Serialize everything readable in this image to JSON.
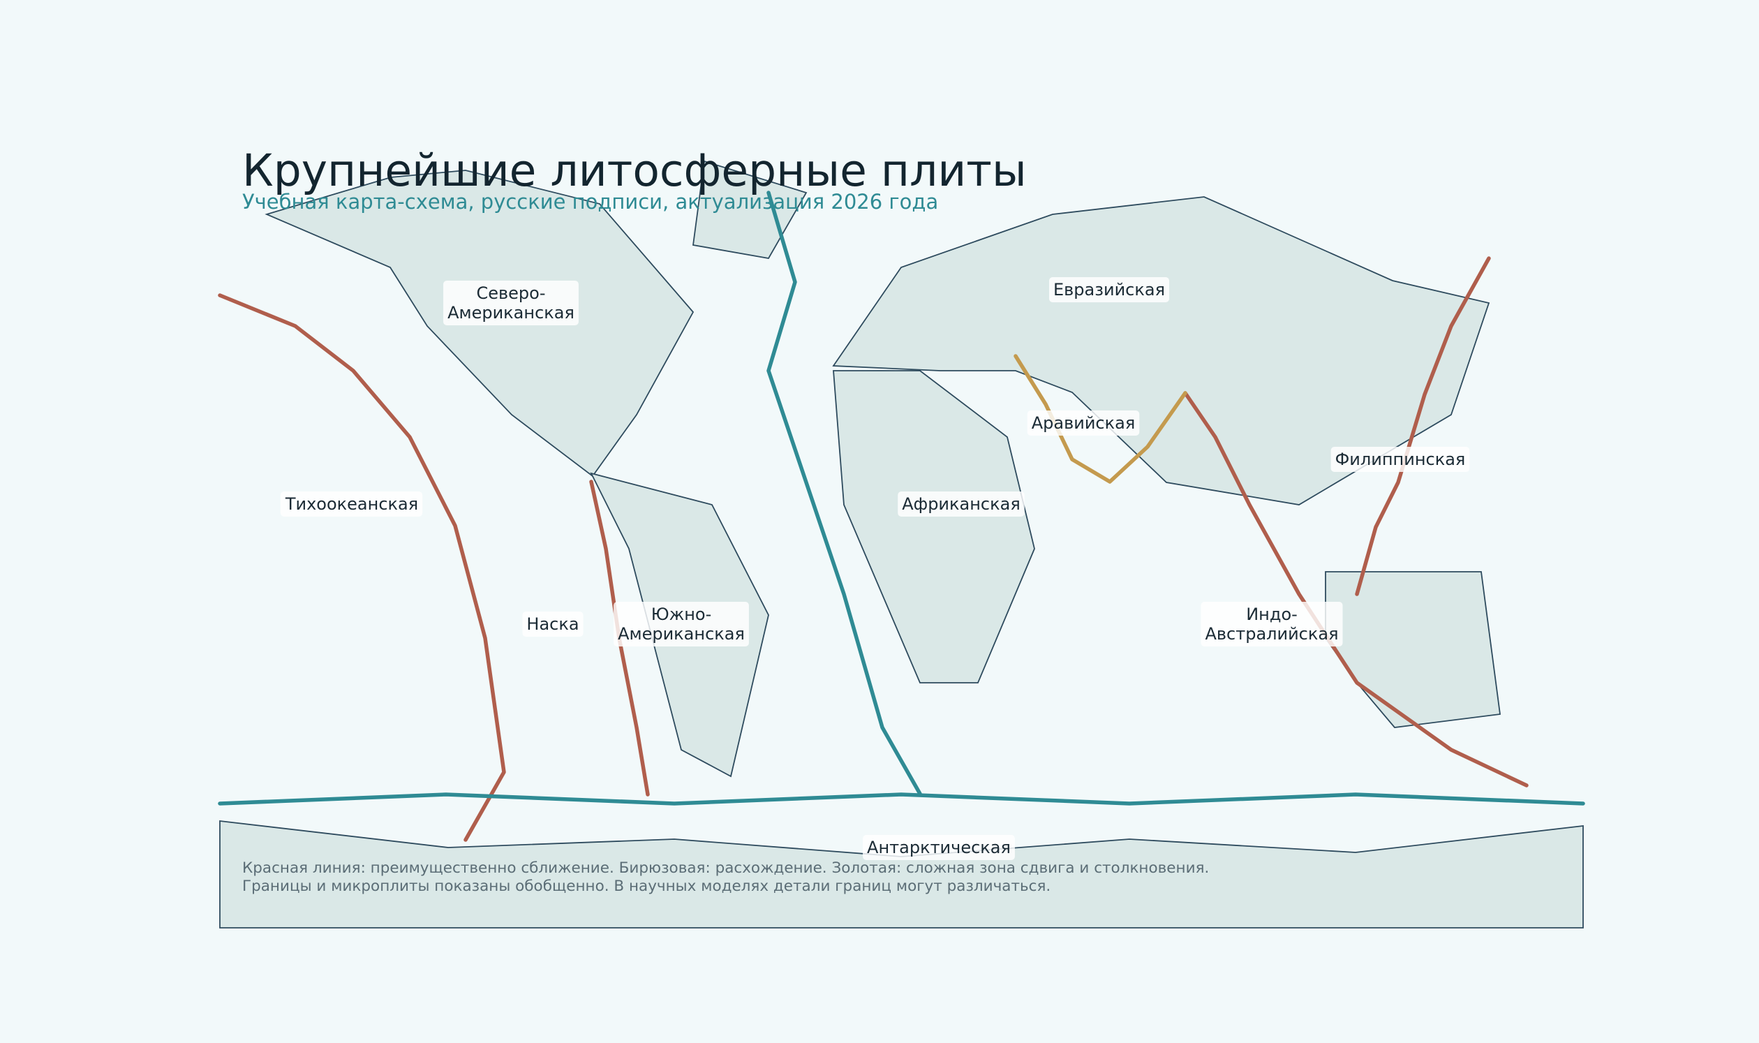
{
  "title": "Крупнейшие литосферные плиты",
  "subtitle": "Учебная карта-схема, русские подписи, актуализация 2026 года",
  "footnote": [
    "Красная линия: преимущественно сближение. Бирюзовая: расхождение. Золотая: сложная зона сдвига и столкновения.",
    "Границы и микроплиты показаны обобщенно. В научных моделях детали границ могут различаться."
  ],
  "colors": {
    "background": "#f2f9fa",
    "land_fill": "#dae8e7",
    "land_stroke": "#2e4b5e",
    "convergent": "#b05e4c",
    "divergent": "#2f8b94",
    "complex": "#c49a4e",
    "title": "#13252f",
    "subtitle": "#2f8b94",
    "footnote": "#5b6d76"
  },
  "boundary_types": [
    {
      "type": "convergent",
      "meaning": "преимущественно сближение",
      "color": "#b05e4c"
    },
    {
      "type": "divergent",
      "meaning": "расхождение",
      "color": "#2f8b94"
    },
    {
      "type": "complex",
      "meaning": "сложная зона сдвига и столкновения",
      "color": "#c49a4e"
    }
  ],
  "plates": [
    {
      "id": "north-american",
      "lines": [
        "Северо-",
        "Американская"
      ],
      "boxed": true
    },
    {
      "id": "eurasian",
      "lines": [
        "Евразийская"
      ],
      "boxed": true
    },
    {
      "id": "arabian",
      "lines": [
        "Аравийская"
      ],
      "boxed": true
    },
    {
      "id": "philippine",
      "lines": [
        "Филиппинская"
      ],
      "boxed": true
    },
    {
      "id": "pacific",
      "lines": [
        "Тихоокеанская"
      ],
      "boxed": true
    },
    {
      "id": "african",
      "lines": [
        "Африканская"
      ],
      "boxed": true
    },
    {
      "id": "nazca",
      "lines": [
        "Наска"
      ],
      "boxed": true
    },
    {
      "id": "south-american",
      "lines": [
        "Южно-",
        "Американская"
      ],
      "boxed": true
    },
    {
      "id": "indo-australian",
      "lines": [
        "Индо-",
        "Австралийская"
      ],
      "boxed": true
    },
    {
      "id": "antarctic",
      "lines": [
        "Антарктическая"
      ],
      "boxed": true
    }
  ]
}
